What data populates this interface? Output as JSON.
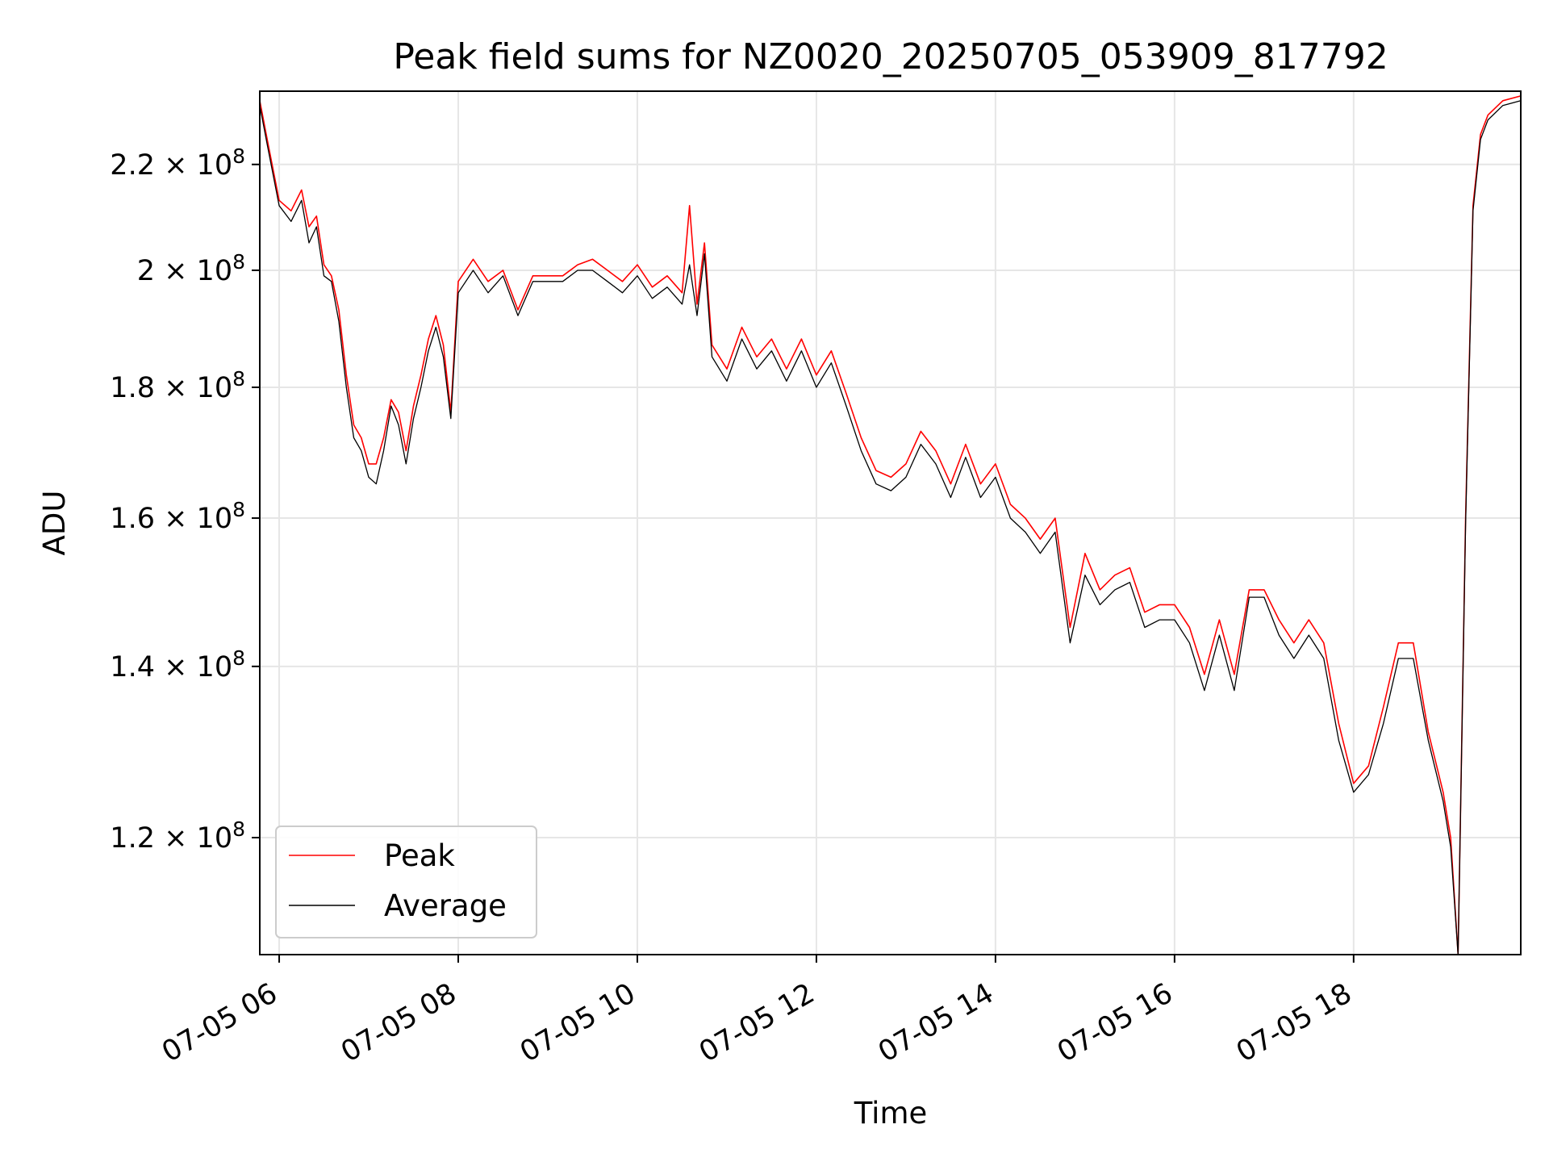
{
  "chart_data": {
    "type": "line",
    "title": "Peak field sums for NZ0020_20250705_053909_817792",
    "xlabel": "Time",
    "ylabel": "ADU",
    "x_axis_type": "time",
    "xlim": [
      "07-05 05:47",
      "07-05 19:52"
    ],
    "ylim": [
      108000000,
      235000000
    ],
    "y_scale": "log",
    "grid": true,
    "legend_position": "lower-left",
    "x_ticks": [
      "07-05 06",
      "07-05 08",
      "07-05 10",
      "07-05 12",
      "07-05 14",
      "07-05 16",
      "07-05 18"
    ],
    "y_ticks": [
      {
        "value": 120000000,
        "mantissa": "1.2",
        "exp": "8"
      },
      {
        "value": 140000000,
        "mantissa": "1.4",
        "exp": "8"
      },
      {
        "value": 160000000,
        "mantissa": "1.6",
        "exp": "8"
      },
      {
        "value": 180000000,
        "mantissa": "1.8",
        "exp": "8"
      },
      {
        "value": 200000000,
        "mantissa": "2",
        "exp": "8"
      },
      {
        "value": 220000000,
        "mantissa": "2.2",
        "exp": "8"
      }
    ],
    "x": [
      "05:47",
      "05:52",
      "06:00",
      "06:08",
      "06:15",
      "06:20",
      "06:25",
      "06:30",
      "06:35",
      "06:40",
      "06:45",
      "06:50",
      "06:55",
      "07:00",
      "07:05",
      "07:10",
      "07:15",
      "07:20",
      "07:25",
      "07:30",
      "07:35",
      "07:40",
      "07:45",
      "07:50",
      "07:55",
      "08:00",
      "08:10",
      "08:20",
      "08:30",
      "08:40",
      "08:50",
      "09:00",
      "09:10",
      "09:20",
      "09:30",
      "09:40",
      "09:50",
      "10:00",
      "10:10",
      "10:20",
      "10:30",
      "10:35",
      "10:40",
      "10:45",
      "10:50",
      "10:55",
      "11:00",
      "11:10",
      "11:20",
      "11:30",
      "11:40",
      "11:50",
      "12:00",
      "12:10",
      "12:20",
      "12:30",
      "12:40",
      "12:50",
      "13:00",
      "13:10",
      "13:20",
      "13:30",
      "13:40",
      "13:50",
      "14:00",
      "14:10",
      "14:20",
      "14:30",
      "14:40",
      "14:50",
      "15:00",
      "15:10",
      "15:20",
      "15:30",
      "15:40",
      "15:50",
      "16:00",
      "16:10",
      "16:20",
      "16:30",
      "16:40",
      "16:50",
      "17:00",
      "17:10",
      "17:20",
      "17:30",
      "17:40",
      "17:50",
      "18:00",
      "18:10",
      "18:20",
      "18:30",
      "18:40",
      "18:50",
      "19:00",
      "19:05",
      "19:10",
      "19:15",
      "19:20",
      "19:25",
      "19:30",
      "19:40",
      "19:52"
    ],
    "series": [
      {
        "name": "Peak",
        "color": "#ff0000",
        "values": [
          233,
          225,
          213,
          211,
          215,
          208,
          210,
          201,
          199,
          193,
          182,
          174,
          172,
          168,
          168,
          172,
          178,
          176,
          170,
          177,
          182,
          188,
          192,
          187,
          176,
          198,
          202,
          198,
          200,
          193,
          199,
          199,
          199,
          201,
          202,
          200,
          198,
          201,
          197,
          199,
          196,
          212,
          194,
          205,
          187,
          185,
          183,
          190,
          185,
          188,
          183,
          188,
          182,
          186,
          179,
          172,
          167,
          166,
          168,
          173,
          170,
          165,
          171,
          165,
          168,
          162,
          160,
          157,
          160,
          145,
          155,
          150,
          152,
          153,
          147,
          148,
          148,
          145,
          139,
          146,
          139,
          150,
          150,
          146,
          143,
          146,
          143,
          133,
          126,
          128,
          135,
          143,
          143,
          132,
          125,
          120,
          108,
          160,
          212,
          226,
          230,
          233,
          234
        ]
      },
      {
        "name": "Average",
        "color": "#000000",
        "values": [
          232,
          224,
          212,
          209,
          213,
          205,
          208,
          199,
          198,
          191,
          180,
          172,
          170,
          166,
          165,
          170,
          177,
          174,
          168,
          175,
          180,
          186,
          190,
          185,
          175,
          196,
          200,
          196,
          199,
          192,
          198,
          198,
          198,
          200,
          200,
          198,
          196,
          199,
          195,
          197,
          194,
          201,
          192,
          203,
          185,
          183,
          181,
          188,
          183,
          186,
          181,
          186,
          180,
          184,
          177,
          170,
          165,
          164,
          166,
          171,
          168,
          163,
          169,
          163,
          166,
          160,
          158,
          155,
          158,
          143,
          152,
          148,
          150,
          151,
          145,
          146,
          146,
          143,
          137,
          144,
          137,
          149,
          149,
          144,
          141,
          144,
          141,
          131,
          125,
          127,
          133,
          141,
          141,
          131,
          124,
          119,
          108,
          159,
          211,
          225,
          229,
          232,
          233
        ]
      }
    ]
  }
}
